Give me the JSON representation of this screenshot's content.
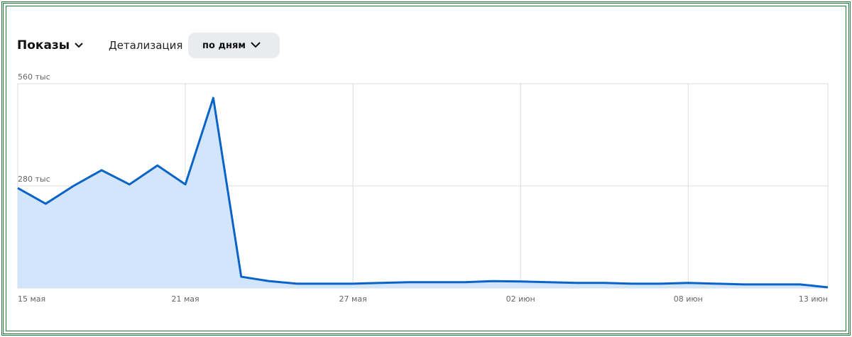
{
  "header": {
    "metric": "Показы",
    "detail_label": "Детализация",
    "detail_value": "по дням"
  },
  "chart_data": {
    "type": "line",
    "categories": [
      "15 мая",
      null,
      null,
      null,
      null,
      null,
      "21 мая",
      null,
      null,
      null,
      null,
      null,
      "27 мая",
      null,
      null,
      null,
      null,
      null,
      "02 июн",
      null,
      null,
      null,
      null,
      null,
      "08 июн",
      null,
      null,
      null,
      null,
      "13 июн"
    ],
    "values": [
      274,
      231,
      280,
      323,
      284,
      336,
      284,
      521,
      31,
      19,
      12,
      12,
      12,
      14,
      16,
      16,
      16,
      19,
      18,
      16,
      14,
      14,
      12,
      12,
      14,
      12,
      10,
      10,
      10,
      2
    ],
    "color": "#0a64c8",
    "fill_color": "#d3e5fb",
    "ylim": [
      0,
      560
    ],
    "yticks": [
      0,
      {
        "value": 280,
        "label": "280 тыс"
      },
      {
        "value": 560,
        "label": "560 тыс"
      }
    ],
    "grid": true
  }
}
